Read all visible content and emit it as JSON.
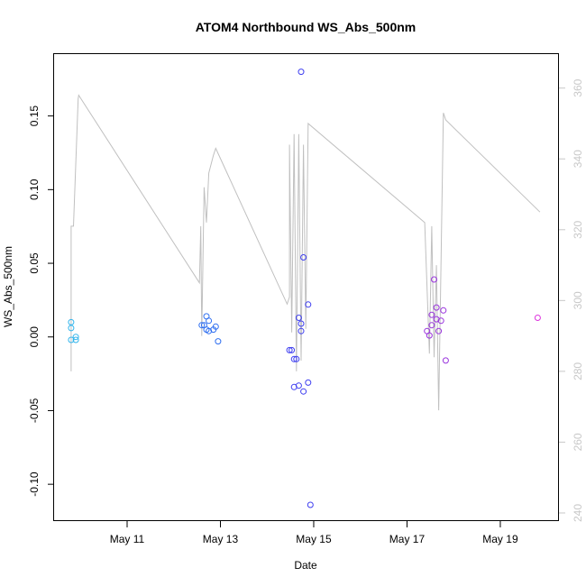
{
  "chart_data": {
    "type": "scatter",
    "title": "ATOM4 Northbound WS_Abs_500nm",
    "xlabel": "Date",
    "ylabel": "WS_Abs_500nm",
    "xlim": [
      "2000-05-09 10:26",
      "2000-05-20 06:10"
    ],
    "ylim": [
      -0.125,
      0.192
    ],
    "x_ticks": [
      "May 11",
      "May 13",
      "May 15",
      "May 17",
      "May 19"
    ],
    "x_tick_dates": [
      "2000-05-11",
      "2000-05-13",
      "2000-05-15",
      "2000-05-17",
      "2000-05-19"
    ],
    "y_ticks": [
      -0.1,
      -0.05,
      0.0,
      0.05,
      0.1,
      0.15
    ],
    "y_tick_labels": [
      "-0.10",
      "-0.05",
      "0.00",
      "0.05",
      "0.10",
      "0.15"
    ],
    "y2lim": [
      237.7,
      369.6
    ],
    "y2_ticks": [
      240,
      260,
      280,
      300,
      320,
      340,
      360
    ],
    "y2_tick_labels": [
      "240",
      "260",
      "280",
      "300",
      "320",
      "340",
      "360"
    ],
    "grid": false,
    "points": [
      {
        "x": "2000-05-09 19:12",
        "y": 0.01,
        "color": "#33b5ec"
      },
      {
        "x": "2000-05-09 19:12",
        "y": 0.006,
        "color": "#33b5ec"
      },
      {
        "x": "2000-05-09 19:12",
        "y": -0.002,
        "color": "#33b5ec"
      },
      {
        "x": "2000-05-09 21:36",
        "y": 0.0,
        "color": "#33b5ec"
      },
      {
        "x": "2000-05-09 21:36",
        "y": -0.002,
        "color": "#33b5ec"
      },
      {
        "x": "2000-05-12 14:24",
        "y": 0.008,
        "color": "#2f6ff0"
      },
      {
        "x": "2000-05-12 15:36",
        "y": 0.008,
        "color": "#2f6ff0"
      },
      {
        "x": "2000-05-12 16:48",
        "y": 0.005,
        "color": "#2f6ff0"
      },
      {
        "x": "2000-05-12 16:48",
        "y": 0.014,
        "color": "#2f6ff0"
      },
      {
        "x": "2000-05-12 18:00",
        "y": 0.004,
        "color": "#2f6ff0"
      },
      {
        "x": "2000-05-12 18:00",
        "y": 0.011,
        "color": "#2f6ff0"
      },
      {
        "x": "2000-05-12 20:24",
        "y": 0.005,
        "color": "#2f6ff0"
      },
      {
        "x": "2000-05-12 21:36",
        "y": 0.007,
        "color": "#2f6ff0"
      },
      {
        "x": "2000-05-12 22:48",
        "y": -0.003,
        "color": "#2f6ff0"
      },
      {
        "x": "2000-05-14 11:31",
        "y": -0.009,
        "color": "#3f3ff0"
      },
      {
        "x": "2000-05-14 12:43",
        "y": -0.009,
        "color": "#3f3ff0"
      },
      {
        "x": "2000-05-14 13:55",
        "y": -0.015,
        "color": "#3f3ff0"
      },
      {
        "x": "2000-05-14 15:07",
        "y": -0.015,
        "color": "#3f3ff0"
      },
      {
        "x": "2000-05-14 13:55",
        "y": -0.034,
        "color": "#3f3ff0"
      },
      {
        "x": "2000-05-14 16:19",
        "y": 0.013,
        "color": "#3f3ff0"
      },
      {
        "x": "2000-05-14 17:31",
        "y": 0.004,
        "color": "#3f3ff0"
      },
      {
        "x": "2000-05-14 17:31",
        "y": 0.009,
        "color": "#3f3ff0"
      },
      {
        "x": "2000-05-14 16:19",
        "y": -0.033,
        "color": "#3f3ff0"
      },
      {
        "x": "2000-05-14 18:43",
        "y": -0.037,
        "color": "#3f3ff0"
      },
      {
        "x": "2000-05-14 17:31",
        "y": 0.18,
        "color": "#3f3ff0"
      },
      {
        "x": "2000-05-14 18:43",
        "y": 0.054,
        "color": "#3f3ff0"
      },
      {
        "x": "2000-05-14 21:07",
        "y": 0.022,
        "color": "#3f3ff0"
      },
      {
        "x": "2000-05-14 21:07",
        "y": -0.031,
        "color": "#3f3ff0"
      },
      {
        "x": "2000-05-14 22:19",
        "y": -0.114,
        "color": "#3f3ff0"
      },
      {
        "x": "2000-05-17 10:19",
        "y": 0.004,
        "color": "#9933dd"
      },
      {
        "x": "2000-05-17 11:31",
        "y": 0.001,
        "color": "#9933dd"
      },
      {
        "x": "2000-05-17 12:43",
        "y": 0.015,
        "color": "#9933dd"
      },
      {
        "x": "2000-05-17 12:43",
        "y": 0.008,
        "color": "#9933dd"
      },
      {
        "x": "2000-05-17 13:55",
        "y": 0.039,
        "color": "#9933dd"
      },
      {
        "x": "2000-05-17 15:07",
        "y": 0.02,
        "color": "#9933dd"
      },
      {
        "x": "2000-05-17 15:07",
        "y": 0.012,
        "color": "#9933dd"
      },
      {
        "x": "2000-05-17 16:19",
        "y": 0.004,
        "color": "#9933dd"
      },
      {
        "x": "2000-05-17 17:31",
        "y": 0.011,
        "color": "#9933dd"
      },
      {
        "x": "2000-05-17 18:43",
        "y": 0.018,
        "color": "#9933dd"
      },
      {
        "x": "2000-05-17 19:55",
        "y": -0.016,
        "color": "#9933dd"
      },
      {
        "x": "2000-05-19 19:12",
        "y": 0.013,
        "color": "#dd33dd"
      }
    ],
    "line_series": {
      "axis": "right",
      "color": "#c0c0c0",
      "points": [
        {
          "x": "2000-05-09 19:12",
          "y": 280
        },
        {
          "x": "2000-05-09 19:12",
          "y": 321
        },
        {
          "x": "2000-05-09 20:24",
          "y": 321
        },
        {
          "x": "2000-05-09 22:48",
          "y": 357
        },
        {
          "x": "2000-05-09 23:05",
          "y": 358
        },
        {
          "x": "2000-05-12 13:12",
          "y": 305
        },
        {
          "x": "2000-05-12 13:55",
          "y": 321
        },
        {
          "x": "2000-05-12 14:24",
          "y": 290
        },
        {
          "x": "2000-05-12 15:36",
          "y": 332
        },
        {
          "x": "2000-05-12 16:48",
          "y": 322
        },
        {
          "x": "2000-05-12 18:00",
          "y": 336
        },
        {
          "x": "2000-05-12 20:24",
          "y": 341
        },
        {
          "x": "2000-05-12 21:36",
          "y": 343
        },
        {
          "x": "2000-05-14 10:19",
          "y": 299
        },
        {
          "x": "2000-05-14 11:31",
          "y": 301
        },
        {
          "x": "2000-05-14 11:31",
          "y": 344
        },
        {
          "x": "2000-05-14 12:43",
          "y": 291
        },
        {
          "x": "2000-05-14 13:55",
          "y": 347
        },
        {
          "x": "2000-05-14 15:07",
          "y": 280
        },
        {
          "x": "2000-05-14 16:19",
          "y": 347
        },
        {
          "x": "2000-05-14 17:31",
          "y": 283
        },
        {
          "x": "2000-05-14 18:43",
          "y": 344
        },
        {
          "x": "2000-05-14 19:55",
          "y": 292
        },
        {
          "x": "2000-05-14 21:07",
          "y": 350
        },
        {
          "x": "2000-05-17 09:07",
          "y": 322
        },
        {
          "x": "2000-05-17 11:31",
          "y": 285
        },
        {
          "x": "2000-05-17 12:43",
          "y": 321
        },
        {
          "x": "2000-05-17 13:55",
          "y": 284
        },
        {
          "x": "2000-05-17 15:07",
          "y": 310
        },
        {
          "x": "2000-05-17 16:19",
          "y": 269
        },
        {
          "x": "2000-05-17 17:31",
          "y": 311
        },
        {
          "x": "2000-05-17 18:43",
          "y": 353
        },
        {
          "x": "2000-05-17 19:55",
          "y": 351
        },
        {
          "x": "2000-05-19 20:24",
          "y": 325
        }
      ]
    }
  }
}
